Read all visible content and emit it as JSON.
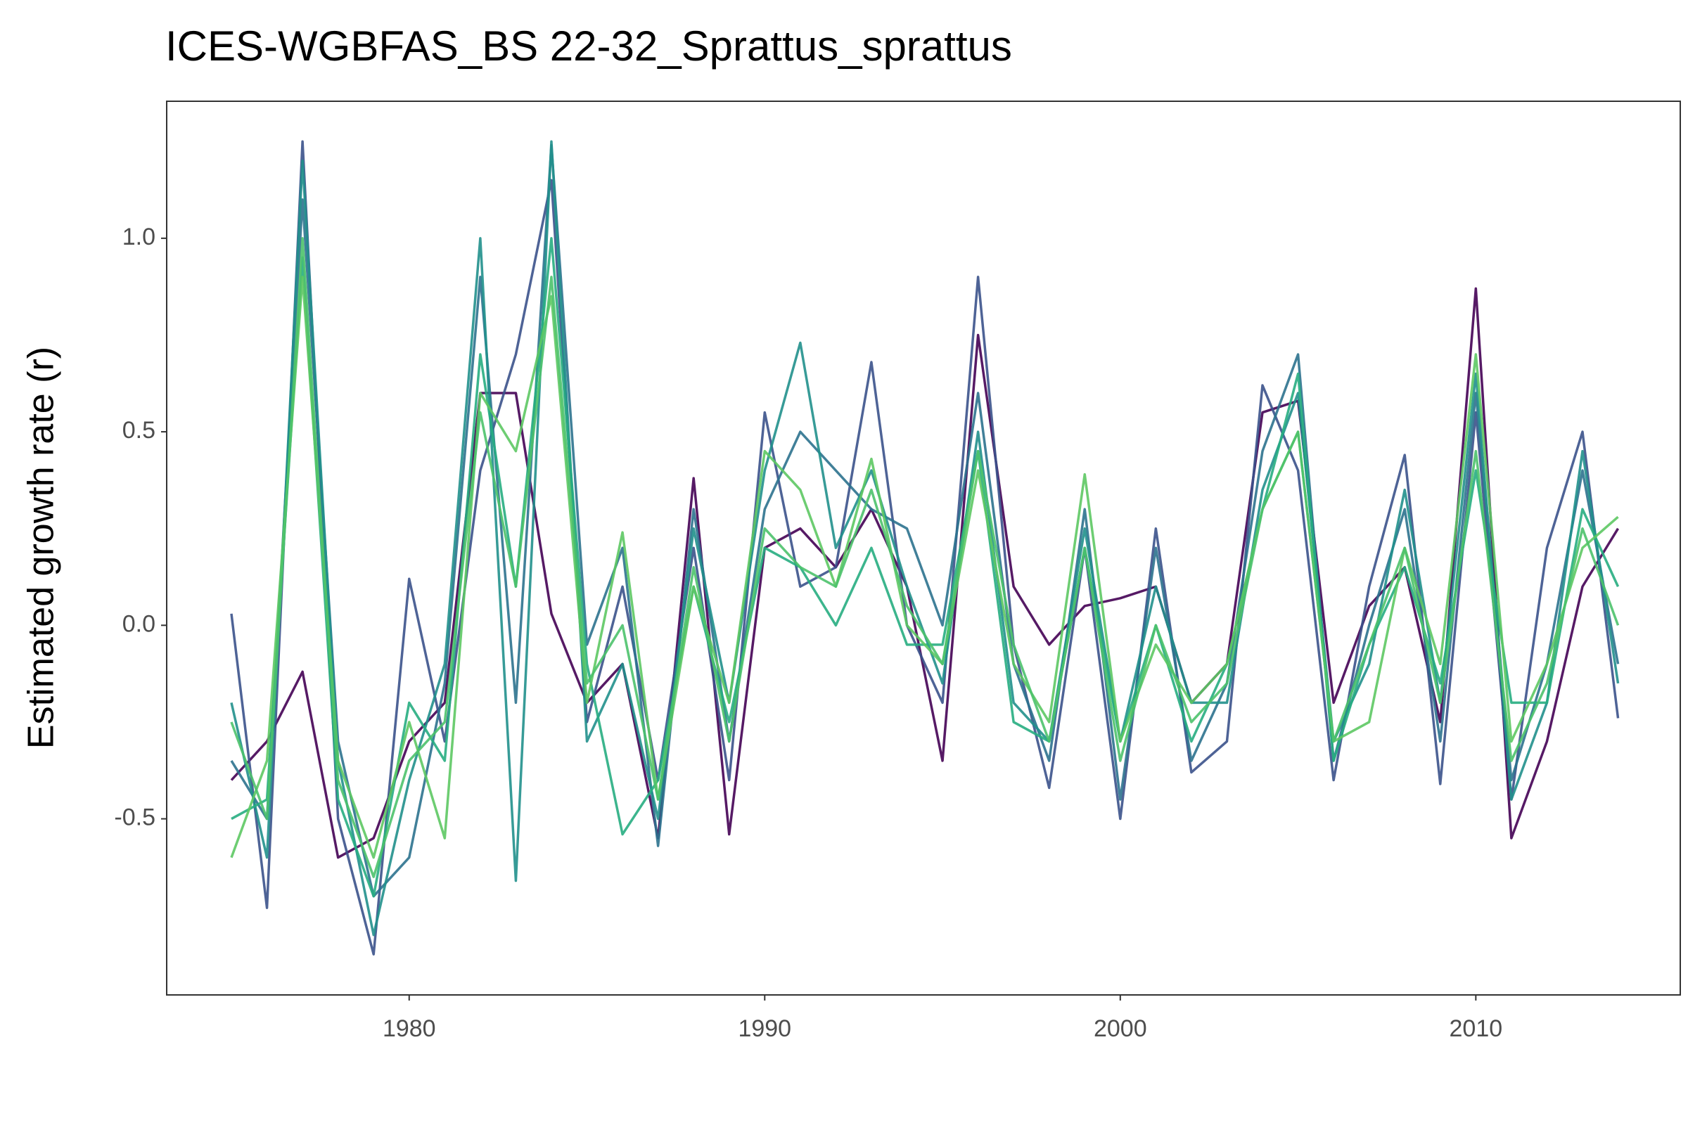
{
  "chart_data": {
    "type": "line",
    "title": "ICES-WGBFAS_BS 22-32_Sprattus_sprattus",
    "y_label": "Estimated growth rate (r)",
    "x": [
      1975,
      1976,
      1977,
      1978,
      1979,
      1980,
      1981,
      1982,
      1983,
      1984,
      1985,
      1986,
      1987,
      1988,
      1989,
      1990,
      1991,
      1992,
      1993,
      1994,
      1995,
      1996,
      1997,
      1998,
      1999,
      2000,
      2001,
      2002,
      2003,
      2004,
      2005,
      2006,
      2007,
      2008,
      2009,
      2010,
      2011,
      2012,
      2013,
      2014
    ],
    "series": [
      {
        "color": "#440154",
        "values": [
          -0.4,
          -0.3,
          -0.12,
          -0.6,
          -0.55,
          -0.3,
          -0.2,
          0.6,
          0.6,
          0.03,
          -0.2,
          -0.1,
          -0.55,
          0.38,
          -0.54,
          0.2,
          0.25,
          0.15,
          0.3,
          0.1,
          -0.35,
          0.75,
          0.1,
          -0.05,
          0.05,
          0.07,
          0.1,
          -0.2,
          -0.1,
          0.55,
          0.58,
          -0.2,
          0.05,
          0.15,
          -0.25,
          0.87,
          -0.55,
          -0.3,
          0.1,
          0.25
        ]
      },
      {
        "color": "#3b528b",
        "values": [
          0.03,
          -0.73,
          1.25,
          -0.5,
          -0.85,
          0.12,
          -0.3,
          0.4,
          0.7,
          1.15,
          -0.25,
          0.1,
          -0.4,
          0.2,
          -0.4,
          0.55,
          0.1,
          0.15,
          0.68,
          0.0,
          -0.2,
          0.9,
          -0.05,
          -0.42,
          0.2,
          -0.5,
          0.25,
          -0.38,
          -0.3,
          0.62,
          0.4,
          -0.4,
          0.1,
          0.44,
          -0.41,
          0.55,
          -0.45,
          0.2,
          0.5,
          -0.24
        ]
      },
      {
        "color": "#2c728e",
        "values": [
          -0.35,
          -0.5,
          1.1,
          -0.3,
          -0.7,
          -0.6,
          -0.15,
          0.9,
          -0.2,
          1.24,
          -0.05,
          0.2,
          -0.57,
          0.3,
          -0.3,
          0.3,
          0.5,
          0.4,
          0.3,
          0.25,
          0.0,
          0.6,
          -0.1,
          -0.35,
          0.3,
          -0.45,
          0.2,
          -0.35,
          -0.15,
          0.45,
          0.7,
          -0.35,
          0.0,
          0.3,
          -0.3,
          0.6,
          -0.4,
          -0.1,
          0.4,
          -0.1
        ]
      },
      {
        "color": "#21908c",
        "values": [
          -0.2,
          -0.6,
          1.2,
          -0.35,
          -0.8,
          -0.4,
          -0.1,
          1.0,
          -0.66,
          1.25,
          -0.3,
          -0.1,
          -0.5,
          0.25,
          -0.2,
          0.4,
          0.73,
          0.2,
          0.4,
          0.1,
          -0.15,
          0.5,
          -0.2,
          -0.3,
          0.25,
          -0.3,
          0.1,
          -0.2,
          -0.2,
          0.35,
          0.6,
          -0.3,
          -0.1,
          0.35,
          -0.2,
          0.65,
          -0.45,
          -0.2,
          0.45,
          -0.15
        ]
      },
      {
        "color": "#27ad81",
        "values": [
          -0.5,
          -0.45,
          0.95,
          -0.45,
          -0.7,
          -0.2,
          -0.35,
          0.7,
          0.1,
          1.0,
          -0.1,
          -0.54,
          -0.4,
          0.1,
          -0.25,
          0.2,
          0.15,
          0.0,
          0.2,
          -0.05,
          -0.05,
          0.45,
          -0.25,
          -0.3,
          0.2,
          -0.3,
          0.0,
          -0.3,
          -0.1,
          0.3,
          0.65,
          -0.35,
          -0.05,
          0.15,
          -0.15,
          0.4,
          -0.2,
          -0.2,
          0.3,
          0.1
        ]
      },
      {
        "color": "#5dc863",
        "values": [
          -0.6,
          -0.35,
          0.9,
          -0.35,
          -0.6,
          -0.25,
          -0.55,
          0.6,
          0.45,
          0.85,
          -0.2,
          0.24,
          -0.45,
          0.1,
          -0.2,
          0.45,
          0.35,
          0.1,
          0.43,
          0.0,
          -0.1,
          0.4,
          -0.1,
          -0.25,
          0.39,
          -0.3,
          -0.05,
          -0.2,
          -0.1,
          0.3,
          0.5,
          -0.3,
          -0.25,
          0.2,
          -0.1,
          0.7,
          -0.3,
          -0.1,
          0.2,
          0.28
        ]
      },
      {
        "color": "#4cc26c",
        "values": [
          -0.25,
          -0.5,
          1.0,
          -0.4,
          -0.65,
          -0.35,
          -0.25,
          0.55,
          0.1,
          0.9,
          -0.15,
          0.0,
          -0.45,
          0.15,
          -0.3,
          0.25,
          0.15,
          0.1,
          0.35,
          0.05,
          -0.1,
          0.45,
          -0.05,
          -0.3,
          0.2,
          -0.35,
          0.0,
          -0.25,
          -0.15,
          0.3,
          0.5,
          -0.3,
          -0.05,
          0.2,
          -0.2,
          0.45,
          -0.35,
          -0.15,
          0.25,
          0.0
        ]
      }
    ],
    "xlim": [
      1973.18,
      2015.75
    ],
    "xticks": [
      1980,
      1990,
      2000,
      2010
    ],
    "ylim": [
      -0.955,
      1.354
    ],
    "yticks": [
      {
        "value": -0.5,
        "label": "-0.5"
      },
      {
        "value": 0,
        "label": "0.0"
      },
      {
        "value": 0.5,
        "label": "0.5"
      },
      {
        "value": 1.0,
        "label": "1.0"
      }
    ],
    "grid": false
  }
}
